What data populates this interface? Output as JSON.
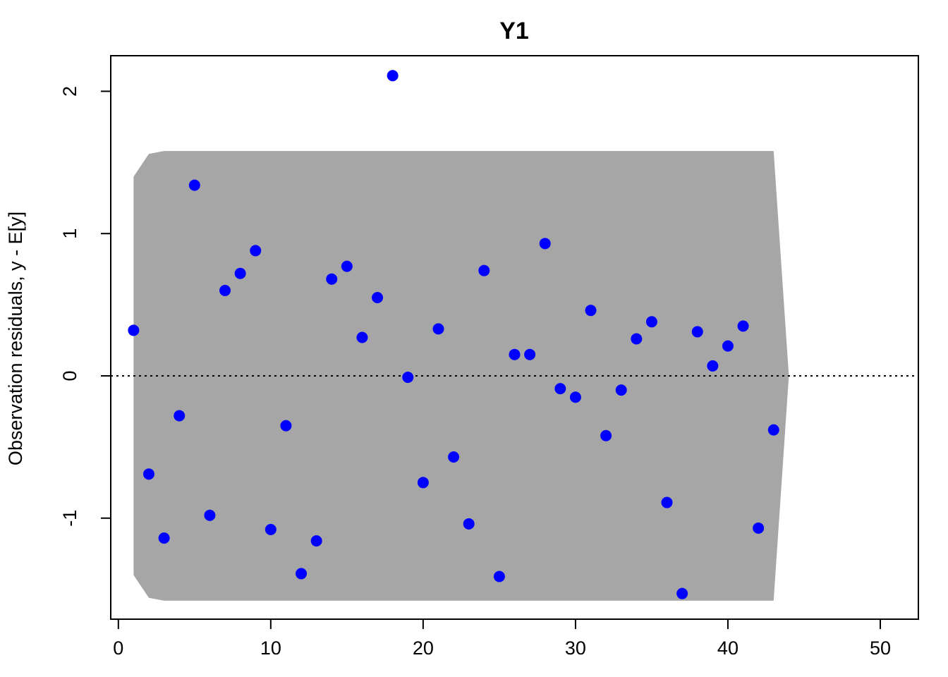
{
  "chart_data": {
    "type": "scatter",
    "title": "Y1",
    "xlabel": "",
    "ylabel": "Observation residuals, y - E[y]",
    "xlim": [
      -0.5,
      52.5
    ],
    "ylim": [
      -1.71,
      2.25
    ],
    "x_ticks": [
      0,
      10,
      20,
      30,
      40,
      50
    ],
    "y_ticks": [
      -1,
      0,
      1,
      2
    ],
    "x_tick_labels": [
      "0",
      "10",
      "20",
      "30",
      "40",
      "50"
    ],
    "y_tick_labels": [
      "-1",
      "0",
      "1",
      "2"
    ],
    "grid": false,
    "reference_line": {
      "y": 0,
      "style": "dotted"
    },
    "band": {
      "color": "#a6a6a6",
      "x": [
        1,
        2,
        3,
        4,
        43,
        44
      ],
      "upper": [
        1.4,
        1.56,
        1.58,
        1.58,
        1.58,
        0
      ],
      "lower": [
        -1.4,
        -1.56,
        -1.58,
        -1.58,
        -1.58,
        0
      ]
    },
    "point_color": "#0000ff",
    "points": [
      {
        "x": 1,
        "y": 0.32
      },
      {
        "x": 2,
        "y": -0.69
      },
      {
        "x": 3,
        "y": -1.14
      },
      {
        "x": 4,
        "y": -0.28
      },
      {
        "x": 5,
        "y": 1.34
      },
      {
        "x": 6,
        "y": -0.98
      },
      {
        "x": 7,
        "y": 0.6
      },
      {
        "x": 8,
        "y": 0.72
      },
      {
        "x": 9,
        "y": 0.88
      },
      {
        "x": 10,
        "y": -1.08
      },
      {
        "x": 11,
        "y": -0.35
      },
      {
        "x": 12,
        "y": -1.39
      },
      {
        "x": 13,
        "y": -1.16
      },
      {
        "x": 14,
        "y": 0.68
      },
      {
        "x": 15,
        "y": 0.77
      },
      {
        "x": 16,
        "y": 0.27
      },
      {
        "x": 17,
        "y": 0.55
      },
      {
        "x": 18,
        "y": 2.11
      },
      {
        "x": 19,
        "y": -0.01
      },
      {
        "x": 20,
        "y": -0.75
      },
      {
        "x": 21,
        "y": 0.33
      },
      {
        "x": 22,
        "y": -0.57
      },
      {
        "x": 23,
        "y": -1.04
      },
      {
        "x": 24,
        "y": 0.74
      },
      {
        "x": 25,
        "y": -1.41
      },
      {
        "x": 26,
        "y": 0.15
      },
      {
        "x": 27,
        "y": 0.15
      },
      {
        "x": 28,
        "y": 0.93
      },
      {
        "x": 29,
        "y": -0.09
      },
      {
        "x": 30,
        "y": -0.15
      },
      {
        "x": 31,
        "y": 0.46
      },
      {
        "x": 32,
        "y": -0.42
      },
      {
        "x": 33,
        "y": -0.1
      },
      {
        "x": 34,
        "y": 0.26
      },
      {
        "x": 35,
        "y": 0.38
      },
      {
        "x": 36,
        "y": -0.89
      },
      {
        "x": 37,
        "y": -1.53
      },
      {
        "x": 38,
        "y": 0.31
      },
      {
        "x": 39,
        "y": 0.07
      },
      {
        "x": 40,
        "y": 0.21
      },
      {
        "x": 41,
        "y": 0.35
      },
      {
        "x": 42,
        "y": -1.07
      },
      {
        "x": 43,
        "y": -0.38
      }
    ]
  }
}
